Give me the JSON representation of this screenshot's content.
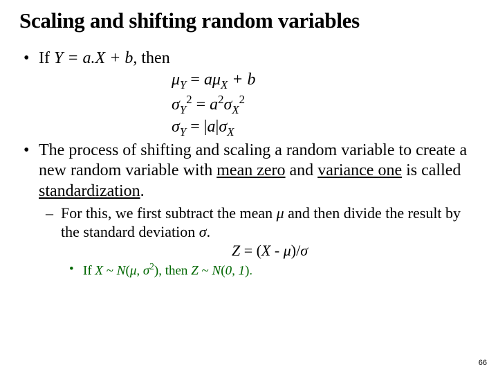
{
  "title": "Scaling and shifting random variables",
  "b1": {
    "pre": "If ",
    "eq": "Y = a.X + b",
    "post": ", then"
  },
  "f1": {
    "a": "μ",
    "b": " = ",
    "c": "a",
    "d": "μ",
    "e": " + ",
    "f": "b"
  },
  "f2": {
    "a": "σ",
    "b": " = ",
    "c": "a",
    "d": "σ"
  },
  "f3": {
    "a": "σ",
    "b": " = |",
    "c": "a",
    "d": "|",
    "e": "σ"
  },
  "b2": {
    "a": "The process of shifting and scaling a random variable to create a new random variable with ",
    "mz": "mean zero",
    "and": " and ",
    "vo": "variance one",
    "mid": " is called ",
    "std": "standardization",
    "dot": "."
  },
  "b3": {
    "a": "For this, we first subtract the mean ",
    "mu": "μ ",
    "b": " and then divide the result by the standard deviation ",
    "sig": "σ",
    "dot": "."
  },
  "fz": {
    "a": "Z",
    "b": " = (",
    "c": "X",
    "d": " - ",
    "e": "μ",
    "f": ")/",
    "g": "σ"
  },
  "b4": {
    "a": "If ",
    "x": "X ",
    "t1": "~ ",
    "n1a": "N",
    "n1b": "(",
    "mu": "μ",
    "c1": ", ",
    "sig": "σ",
    "n1c": ")",
    "mid": ", then ",
    "z": "Z ",
    "t2": " ~ ",
    "n2a": "N",
    "n2b": "(",
    "zero": "0",
    "c2": ", ",
    "one": "1",
    "n2c": ").",
    "dot": ""
  },
  "subY": "Y",
  "subX": "X",
  "sup2": "2",
  "pagenum": "66"
}
